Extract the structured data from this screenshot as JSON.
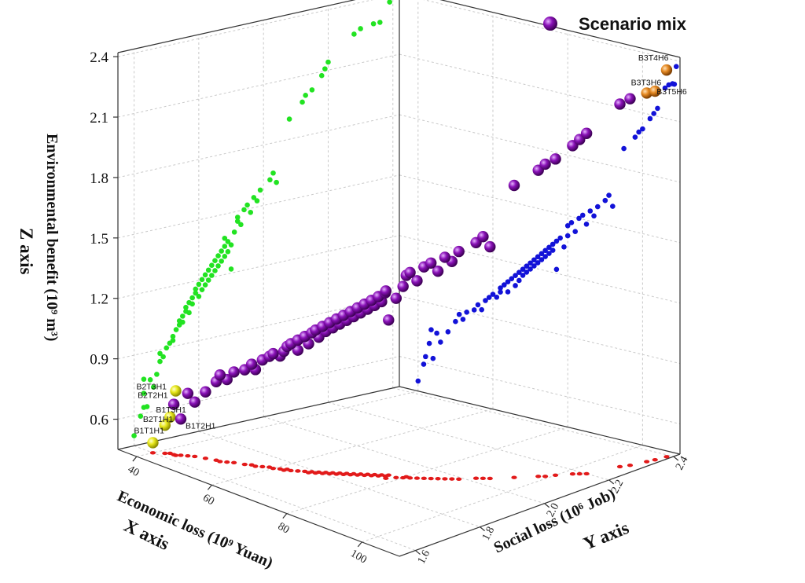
{
  "chart_data": {
    "type": "scatter",
    "is_3d": true,
    "legend": {
      "label": "Scenario mix",
      "color": "#8a12b8",
      "placement": "top-right"
    },
    "axes": {
      "x": {
        "label": "Economic loss (10⁹ Yuan)",
        "axis_name": "X axis",
        "ticks": [
          "40",
          "60",
          "80",
          "100"
        ],
        "range": [
          35,
          110
        ]
      },
      "y": {
        "label": "Social loss (10⁶ Job)",
        "axis_name": "Y axis",
        "ticks": [
          "1.6",
          "1.8",
          "2.0",
          "2.2",
          "2.4"
        ],
        "range": [
          1.55,
          2.42
        ]
      },
      "z": {
        "label": "Environmental benefit (10⁹ m³)",
        "axis_name": "Z axis",
        "ticks": [
          "0.6",
          "0.9",
          "1.2",
          "1.5",
          "1.8",
          "2.1",
          "2.4"
        ],
        "range": [
          0.45,
          2.42
        ]
      }
    },
    "grid": true,
    "projections": {
      "xz_wall_color": "#22e322",
      "yz_wall_color": "#1212d8",
      "xy_floor_color": "#e21a1a"
    },
    "highlight_colors": {
      "low": "#e8e81c",
      "high": "#e68a24",
      "main": "#8a12b8"
    },
    "labeled_points": [
      {
        "name": "B1T1H1",
        "x": 40.0,
        "y": 1.6,
        "z": 0.5,
        "group": "low"
      },
      {
        "name": "B2T1H1",
        "x": 41.5,
        "y": 1.62,
        "z": 0.59,
        "group": "low"
      },
      {
        "name": "B1T3H1",
        "x": 42.0,
        "y": 1.63,
        "z": 0.63,
        "group": "low"
      },
      {
        "name": "B1T2H1",
        "x": 44.0,
        "y": 1.64,
        "z": 0.63,
        "group": "main"
      },
      {
        "name": "B2T2H1",
        "x": 43.0,
        "y": 1.63,
        "z": 0.7,
        "group": "main"
      },
      {
        "name": "B2T3H1",
        "x": 43.5,
        "y": 1.63,
        "z": 0.77,
        "group": "low"
      },
      {
        "name": "B3T3H6",
        "x": 108.0,
        "y": 2.34,
        "z": 2.28,
        "group": "high"
      },
      {
        "name": "B3T5H6",
        "x": 108.5,
        "y": 2.36,
        "z": 2.28,
        "group": "high"
      },
      {
        "name": "B3T4H6",
        "x": 109.0,
        "y": 2.39,
        "z": 2.37,
        "group": "high"
      }
    ],
    "series": [
      {
        "name": "Scenario mix",
        "points": [
          [
            45,
            1.65,
            0.76
          ],
          [
            46,
            1.66,
            0.72
          ],
          [
            48,
            1.67,
            0.78
          ],
          [
            50,
            1.68,
            0.84
          ],
          [
            51,
            1.68,
            0.88
          ],
          [
            52,
            1.69,
            0.86
          ],
          [
            53,
            1.7,
            0.9
          ],
          [
            55,
            1.71,
            0.92
          ],
          [
            56,
            1.72,
            0.95
          ],
          [
            57,
            1.72,
            0.93
          ],
          [
            58,
            1.73,
            0.98
          ],
          [
            59,
            1.74,
            1.0
          ],
          [
            60,
            1.74,
            1.02
          ],
          [
            61,
            1.75,
            1.01
          ],
          [
            62,
            1.75,
            1.04
          ],
          [
            62,
            1.76,
            1.06
          ],
          [
            63,
            1.76,
            1.08
          ],
          [
            64,
            1.77,
            1.05
          ],
          [
            64,
            1.77,
            1.1
          ],
          [
            65,
            1.78,
            1.12
          ],
          [
            66,
            1.78,
            1.09
          ],
          [
            66,
            1.79,
            1.14
          ],
          [
            67,
            1.79,
            1.16
          ],
          [
            67,
            1.8,
            1.12
          ],
          [
            68,
            1.8,
            1.18
          ],
          [
            68,
            1.81,
            1.15
          ],
          [
            69,
            1.81,
            1.2
          ],
          [
            69,
            1.82,
            1.17
          ],
          [
            70,
            1.82,
            1.22
          ],
          [
            70,
            1.83,
            1.19
          ],
          [
            71,
            1.83,
            1.24
          ],
          [
            71,
            1.84,
            1.21
          ],
          [
            72,
            1.84,
            1.26
          ],
          [
            72,
            1.85,
            1.23
          ],
          [
            73,
            1.85,
            1.28
          ],
          [
            73,
            1.86,
            1.25
          ],
          [
            74,
            1.86,
            1.3
          ],
          [
            74,
            1.87,
            1.27
          ],
          [
            75,
            1.87,
            1.32
          ],
          [
            75,
            1.88,
            1.29
          ],
          [
            76,
            1.88,
            1.34
          ],
          [
            76,
            1.89,
            1.31
          ],
          [
            77,
            1.89,
            1.36
          ],
          [
            77,
            1.9,
            1.22
          ],
          [
            78,
            1.88,
            1.38
          ],
          [
            79,
            1.9,
            1.34
          ],
          [
            80,
            1.91,
            1.4
          ],
          [
            80,
            1.92,
            1.45
          ],
          [
            81,
            1.92,
            1.47
          ],
          [
            82,
            1.93,
            1.43
          ],
          [
            83,
            1.94,
            1.5
          ],
          [
            84,
            1.95,
            1.52
          ],
          [
            85,
            1.96,
            1.48
          ],
          [
            86,
            1.97,
            1.55
          ],
          [
            87,
            1.98,
            1.53
          ],
          [
            88,
            1.99,
            1.58
          ],
          [
            90,
            2.02,
            1.62
          ],
          [
            91,
            2.03,
            1.65
          ],
          [
            92,
            2.04,
            1.6
          ],
          [
            95,
            2.08,
            1.9
          ],
          [
            98,
            2.12,
            1.97
          ],
          [
            99,
            2.13,
            2.0
          ],
          [
            100,
            2.15,
            2.02
          ],
          [
            102,
            2.18,
            2.08
          ],
          [
            103,
            2.19,
            2.11
          ],
          [
            104,
            2.2,
            2.14
          ],
          [
            106,
            2.28,
            2.25
          ],
          [
            107,
            2.3,
            2.27
          ]
        ]
      }
    ]
  }
}
